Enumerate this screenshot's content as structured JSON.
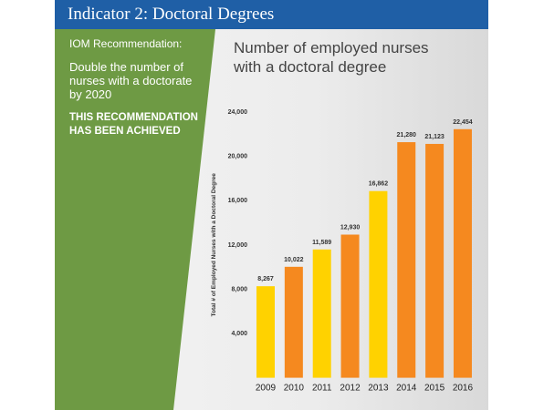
{
  "header": {
    "title": "Indicator 2: Doctoral Degrees"
  },
  "recommendation": {
    "label": "IOM Recommendation:",
    "text": "Double the number of nurses with a doctorate by 2020",
    "status": "THIS RECOMMENDATION HAS BEEN ACHIEVED"
  },
  "chart_data": {
    "type": "bar",
    "title": "Number of employed nurses with a doctoral degree",
    "y_label": "Total # of Employed Nurses with a Doctoral Degree",
    "categories": [
      "2009",
      "2010",
      "2011",
      "2012",
      "2013",
      "2014",
      "2015",
      "2016"
    ],
    "values": [
      8267,
      10022,
      11589,
      12930,
      16862,
      21280,
      21123,
      22454
    ],
    "value_labels": [
      "8,267",
      "10,022",
      "11,589",
      "12,930",
      "16,862",
      "21,280",
      "21,123",
      "22,454"
    ],
    "colors": [
      "#ffd200",
      "#f5891f",
      "#ffd200",
      "#f5891f",
      "#ffd200",
      "#f5891f",
      "#f5891f",
      "#f5891f"
    ],
    "ylim": [
      0,
      24000
    ],
    "yticks": [
      {
        "value": 4000,
        "label": "4,000"
      },
      {
        "value": 8000,
        "label": "8,000"
      },
      {
        "value": 12000,
        "label": "12,000"
      },
      {
        "value": 16000,
        "label": "16,000"
      },
      {
        "value": 20000,
        "label": "20,000"
      },
      {
        "value": 24000,
        "label": "24,000"
      }
    ],
    "grid": false
  }
}
